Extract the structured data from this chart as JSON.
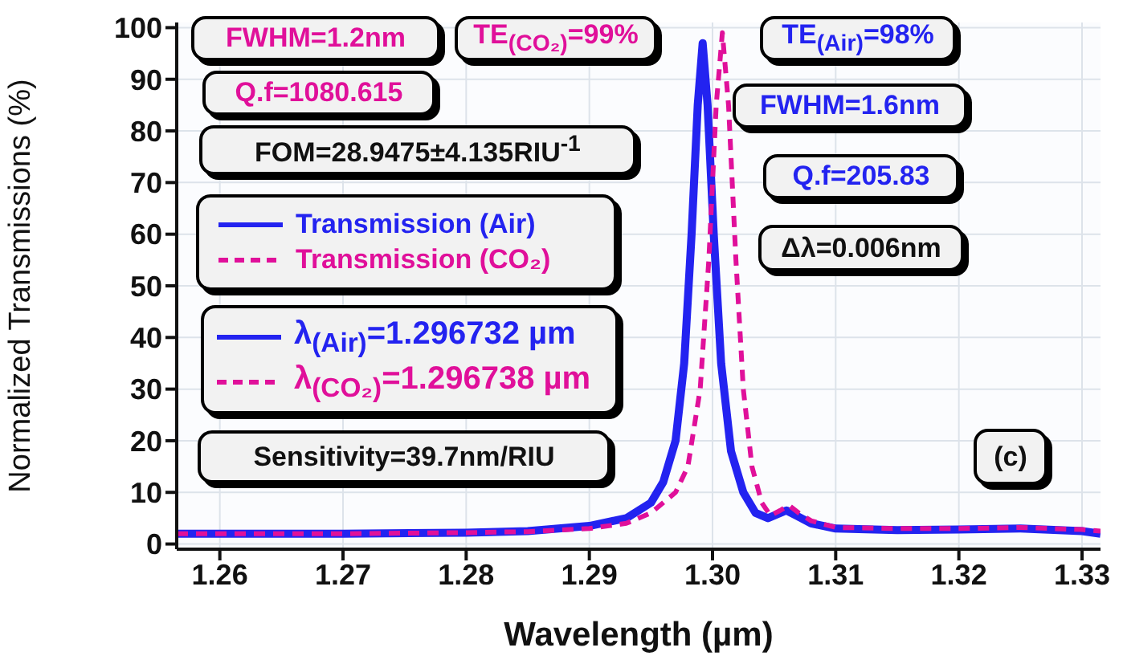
{
  "chart_data": {
    "type": "line",
    "xlabel": "Wavelength (µm)",
    "ylabel": "Normalized Transmissions (%)",
    "xlim": [
      1.2565,
      1.3315
    ],
    "xticks": [
      1.26,
      1.27,
      1.28,
      1.29,
      {
        "value": 1.3,
        "label": "1.30"
      },
      1.31,
      1.32,
      1.33
    ],
    "ylim": [
      -1,
      101
    ],
    "yticks": [
      0,
      10,
      20,
      30,
      40,
      50,
      60,
      70,
      80,
      90,
      100
    ],
    "grid": true,
    "legend": "left",
    "marker": "none",
    "series": [
      {
        "name": "Transmission (Air)",
        "color": "#2323f0",
        "line_style": "solid",
        "x": [
          1.2565,
          1.27,
          1.28,
          1.285,
          1.29,
          1.293,
          1.295,
          1.296,
          1.297,
          1.2977,
          1.2983,
          1.2988,
          1.2992,
          1.2996,
          1.3001,
          1.3007,
          1.3015,
          1.3025,
          1.3035,
          1.3045,
          1.3055,
          1.306,
          1.3068,
          1.308,
          1.31,
          1.315,
          1.32,
          1.325,
          1.33,
          1.3315
        ],
        "values": [
          2,
          2,
          2.2,
          2.5,
          3.5,
          5,
          8,
          12,
          20,
          35,
          60,
          85,
          97,
          85,
          60,
          35,
          18,
          10,
          6,
          5,
          6,
          6.5,
          5.5,
          4,
          3,
          2.7,
          2.8,
          3,
          2.5,
          2
        ]
      },
      {
        "name": "Transmission (CO₂)",
        "color": "#e0109a",
        "line_style": "dashed",
        "x": [
          1.2565,
          1.27,
          1.28,
          1.285,
          1.29,
          1.293,
          1.295,
          1.297,
          1.298,
          1.299,
          1.2997,
          1.3003,
          1.3008,
          1.3013,
          1.3019,
          1.3025,
          1.3032,
          1.304,
          1.3047,
          1.3055,
          1.3062,
          1.307,
          1.308,
          1.31,
          1.315,
          1.32,
          1.325,
          1.33,
          1.3315
        ],
        "values": [
          2,
          2,
          2.2,
          2.4,
          3,
          4,
          6,
          10,
          15,
          30,
          55,
          85,
          99,
          85,
          55,
          30,
          15,
          8,
          5.5,
          6.5,
          7.5,
          6,
          4.5,
          3.2,
          3,
          3,
          3.2,
          2.8,
          2.5
        ]
      }
    ],
    "annotations": [
      "FWHM=1.2nm",
      "TE$_{(CO₂)}$=99%",
      "Q.f=1080.615",
      "FOM=28.9475±4.135RIU$^{-1}$",
      "λ$_{(Air)}$=1.296732 µm",
      "λ$_{(CO₂)}$=1.296738 µm",
      "Sensitivity=39.7nm/RIU",
      "TE$_{(Air)}$=98%",
      "FWHM=1.6nm",
      "Q.f=205.83",
      "Δλ=0.006nm",
      "(c)"
    ]
  }
}
